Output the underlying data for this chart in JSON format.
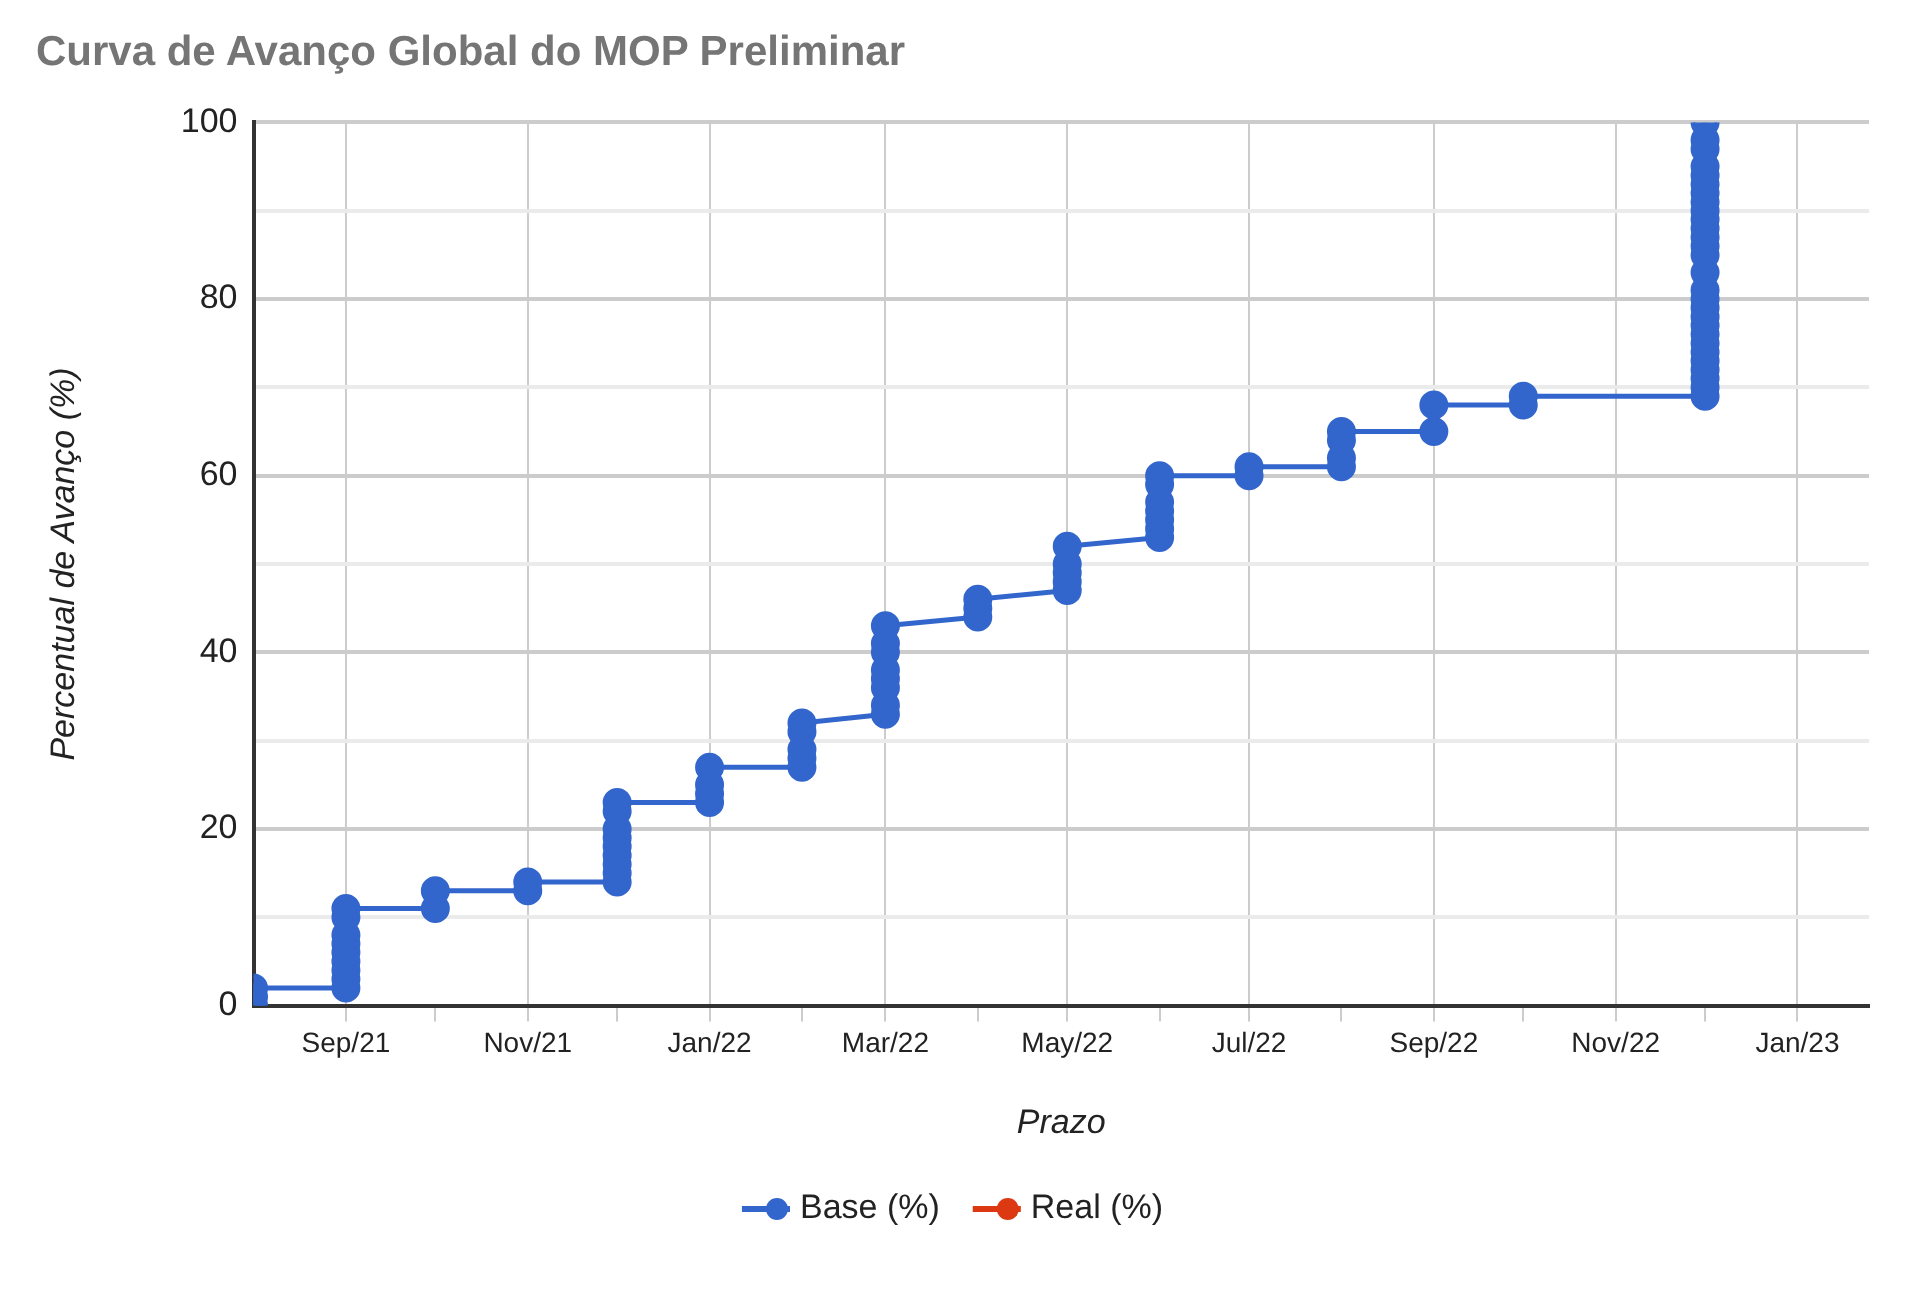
{
  "chart_data": {
    "type": "line",
    "title": "Curva de Avanço Global do MOP Preliminar",
    "xlabel": "Prazo",
    "ylabel": "Percentual de Avanço (%)",
    "x": [
      "2021-08-01",
      "2021-08-01",
      "2021-08-01",
      "2021-09-01",
      "2021-09-01",
      "2021-09-01",
      "2021-09-01",
      "2021-09-01",
      "2021-09-01",
      "2021-09-01",
      "2021-09-01",
      "2021-09-01",
      "2021-10-01",
      "2021-10-01",
      "2021-11-01",
      "2021-11-01",
      "2021-12-01",
      "2021-12-01",
      "2021-12-01",
      "2021-12-01",
      "2021-12-01",
      "2021-12-01",
      "2021-12-01",
      "2021-12-01",
      "2021-12-01",
      "2022-01-01",
      "2022-01-01",
      "2022-01-01",
      "2022-01-01",
      "2022-02-01",
      "2022-02-01",
      "2022-02-01",
      "2022-02-01",
      "2022-02-01",
      "2022-03-01",
      "2022-03-01",
      "2022-03-01",
      "2022-03-01",
      "2022-03-01",
      "2022-03-01",
      "2022-03-01",
      "2022-03-01",
      "2022-04-01",
      "2022-04-01",
      "2022-04-01",
      "2022-05-01",
      "2022-05-01",
      "2022-05-01",
      "2022-05-01",
      "2022-05-01",
      "2022-06-01",
      "2022-06-01",
      "2022-06-01",
      "2022-06-01",
      "2022-06-01",
      "2022-06-01",
      "2022-06-01",
      "2022-07-01",
      "2022-07-01",
      "2022-08-01",
      "2022-08-01",
      "2022-08-01",
      "2022-08-01",
      "2022-09-01",
      "2022-09-01",
      "2022-10-01",
      "2022-10-01",
      "2022-12-01",
      "2022-12-01",
      "2022-12-01",
      "2022-12-01",
      "2022-12-01",
      "2022-12-01",
      "2022-12-01",
      "2022-12-01",
      "2022-12-01",
      "2022-12-01",
      "2022-12-01",
      "2022-12-01",
      "2022-12-01",
      "2022-12-01",
      "2022-12-01",
      "2022-12-01",
      "2022-12-01",
      "2022-12-01",
      "2022-12-01",
      "2022-12-01",
      "2022-12-01",
      "2022-12-01",
      "2022-12-01",
      "2022-12-01",
      "2022-12-01",
      "2022-12-01",
      "2022-12-01",
      "2022-12-01"
    ],
    "series": [
      {
        "name": "Base (%)",
        "color": "#3366cc",
        "values": [
          0,
          1,
          2,
          2,
          3,
          4,
          5,
          6,
          7,
          8,
          10,
          11,
          11,
          13,
          13,
          14,
          14,
          15,
          16,
          17,
          18,
          19,
          20,
          22,
          23,
          23,
          24,
          25,
          27,
          27,
          28,
          29,
          31,
          32,
          33,
          34,
          36,
          37,
          38,
          40,
          41,
          43,
          44,
          45,
          46,
          47,
          48,
          49,
          50,
          52,
          53,
          54,
          55,
          56,
          57,
          59,
          60,
          60,
          61,
          61,
          62,
          64,
          65,
          65,
          68,
          68,
          69,
          69,
          70,
          71,
          72,
          73,
          74,
          75,
          76,
          77,
          78,
          79,
          80,
          81,
          83,
          85,
          86,
          87,
          88,
          89,
          90,
          91,
          92,
          93,
          94,
          95,
          97,
          98,
          100
        ]
      },
      {
        "name": "Real (%)",
        "color": "#dc3912",
        "values": [
          null,
          null,
          null,
          null,
          null,
          null,
          null,
          null,
          null,
          null,
          null,
          null,
          null,
          null,
          null,
          null,
          null,
          null,
          null,
          null,
          null,
          null,
          null,
          null,
          null,
          null,
          null,
          null,
          null,
          null,
          null,
          null,
          null,
          null,
          null,
          null,
          null,
          null,
          null,
          null,
          null,
          null,
          null,
          null,
          null,
          null,
          null,
          null,
          null,
          null,
          null,
          null,
          null,
          null,
          null,
          null,
          null,
          null,
          null,
          null,
          null,
          null,
          null,
          null,
          null,
          null,
          null,
          null,
          null,
          null,
          null,
          null,
          null,
          null,
          null,
          null,
          null,
          null,
          null,
          null,
          null,
          null,
          null,
          null,
          null,
          null,
          null,
          null,
          null,
          null,
          null,
          null,
          null,
          null,
          null
        ]
      }
    ],
    "xlim": [
      "2021-08-01",
      "2023-01-25"
    ],
    "xticks": [
      {
        "value": "2021-09-01",
        "label": "Sep/21"
      },
      {
        "value": "2021-10-01",
        "label": null
      },
      {
        "value": "2021-11-01",
        "label": "Nov/21"
      },
      {
        "value": "2021-12-01",
        "label": null
      },
      {
        "value": "2022-01-01",
        "label": "Jan/22"
      },
      {
        "value": "2022-02-01",
        "label": null
      },
      {
        "value": "2022-03-01",
        "label": "Mar/22"
      },
      {
        "value": "2022-04-01",
        "label": null
      },
      {
        "value": "2022-05-01",
        "label": "May/22"
      },
      {
        "value": "2022-06-01",
        "label": null
      },
      {
        "value": "2022-07-01",
        "label": "Jul/22"
      },
      {
        "value": "2022-08-01",
        "label": null
      },
      {
        "value": "2022-09-01",
        "label": "Sep/22"
      },
      {
        "value": "2022-10-01",
        "label": null
      },
      {
        "value": "2022-11-01",
        "label": "Nov/22"
      },
      {
        "value": "2022-12-01",
        "label": null
      },
      {
        "value": "2023-01-01",
        "label": "Jan/23"
      }
    ],
    "ylim": [
      0,
      100
    ],
    "yticks": [
      0,
      {
        "value": 10,
        "label": null
      },
      20,
      {
        "value": 30,
        "label": null
      },
      40,
      {
        "value": 50,
        "label": null
      },
      60,
      {
        "value": 70,
        "label": null
      },
      80,
      {
        "value": 90,
        "label": null
      },
      100
    ],
    "grid": true,
    "legend": "bottom",
    "marker": "circle",
    "line_style": "solid"
  }
}
